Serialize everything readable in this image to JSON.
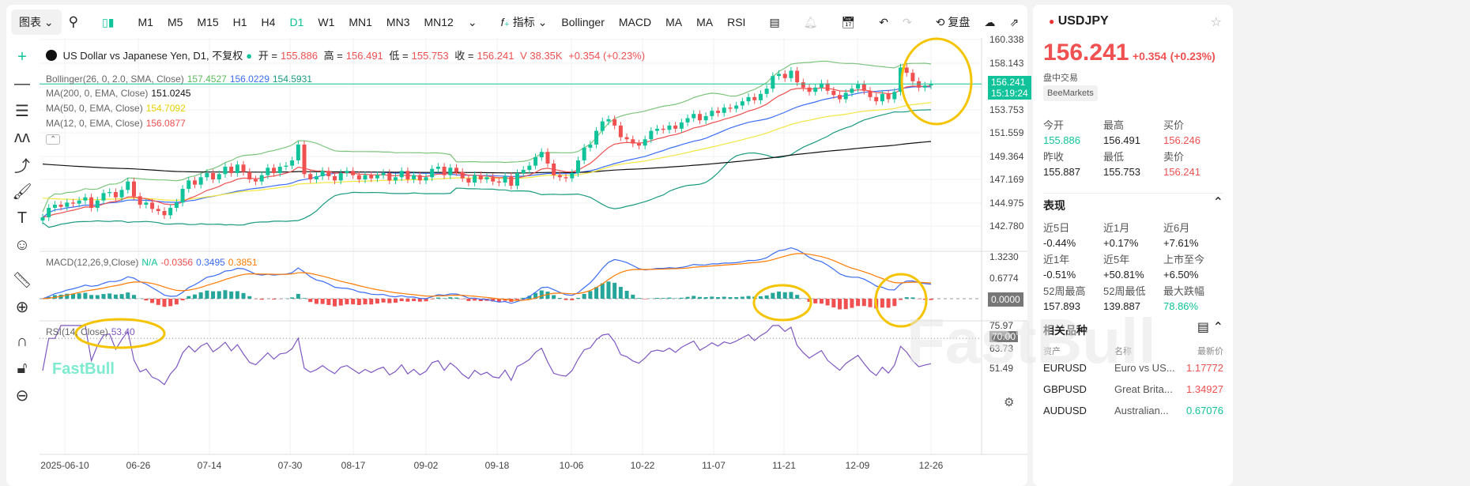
{
  "toolbar": {
    "chart_menu": "图表",
    "timeframes": [
      "M1",
      "M5",
      "M15",
      "H1",
      "H4",
      "D1",
      "W1",
      "MN1",
      "MN3",
      "MN12"
    ],
    "active_timeframe": "D1",
    "indicators_label": "指标",
    "indicator_shortcuts": [
      "Bollinger",
      "MACD",
      "MA",
      "MA",
      "RSI"
    ],
    "replay_label": "复盘"
  },
  "header": {
    "title": "US Dollar vs Japanese Yen, D1, 不复权",
    "open_label": "开 =",
    "open": "155.886",
    "high_label": "高 =",
    "high": "156.491",
    "low_label": "低 =",
    "low": "155.753",
    "close_label": "收 =",
    "close": "156.241",
    "volume": "V 38.35K",
    "change": "+0.354 (+0.23%)"
  },
  "indicators": {
    "bollinger": {
      "label": "Bollinger(26, 0, 2.0, SMA, Close)",
      "upper": "157.4527",
      "mid": "156.0229",
      "lower": "154.5931"
    },
    "ma200": {
      "label": "MA(200, 0, EMA, Close)",
      "value": "151.0245"
    },
    "ma50": {
      "label": "MA(50, 0, EMA, Close)",
      "value": "154.7092"
    },
    "ma12": {
      "label": "MA(12, 0, EMA, Close)",
      "value": "156.0877"
    },
    "macd": {
      "label": "MACD(12,26,9,Close)",
      "na": "N/A",
      "hist": "-0.0356",
      "macd": "0.3495",
      "signal": "0.3851"
    },
    "rsi": {
      "label": "RSI(14, Close)",
      "value": "53.40"
    }
  },
  "price_axis": [
    "160.338",
    "158.143",
    "156.241",
    "153.753",
    "151.559",
    "149.364",
    "147.169",
    "144.975",
    "142.780"
  ],
  "current_price_tag": {
    "price": "156.241",
    "countdown": "15:19:24"
  },
  "macd_axis": [
    "1.3230",
    "0.6774",
    "0.0000"
  ],
  "rsi_axis": [
    "75.97",
    "70.00",
    "63.73",
    "51.49"
  ],
  "dates": [
    "2025-06-10",
    "06-26",
    "07-14",
    "07-30",
    "08-17",
    "09-02",
    "09-18",
    "10-06",
    "10-22",
    "11-07",
    "11-21",
    "12-09",
    "12-26"
  ],
  "watermark": "FastBull",
  "colors": {
    "up": "#10c39a",
    "down": "#f05050",
    "accent": "#10c39a"
  },
  "chart_data": {
    "type": "candlestick",
    "symbol": "USDJPY",
    "timeframe": "D1",
    "ylim": [
      142.0,
      160.6
    ],
    "closes": [
      143.6,
      144.5,
      144.8,
      144.6,
      145.0,
      144.9,
      145.2,
      145.5,
      144.5,
      145.2,
      145.9,
      146.0,
      145.5,
      146.2,
      147.0,
      145.6,
      144.8,
      145.0,
      144.4,
      144.2,
      143.8,
      144.5,
      145.0,
      146.3,
      147.1,
      146.7,
      147.4,
      147.8,
      147.2,
      147.7,
      148.4,
      147.8,
      148.6,
      147.9,
      147.2,
      147.0,
      147.6,
      148.3,
      147.8,
      148.4,
      148.5,
      149.0,
      150.5,
      147.7,
      147.2,
      147.5,
      148.0,
      147.5,
      147.1,
      147.8,
      148.0,
      147.6,
      147.2,
      147.6,
      147.3,
      147.6,
      147.8,
      147.1,
      147.4,
      148.0,
      147.2,
      147.6,
      147.1,
      147.4,
      148.2,
      148.4,
      147.6,
      148.3,
      147.9,
      147.3,
      146.9,
      147.6,
      147.2,
      147.4,
      147.0,
      146.9,
      147.5,
      146.6,
      147.8,
      148.1,
      148.5,
      149.3,
      149.8,
      148.7,
      147.6,
      147.4,
      147.3,
      147.8,
      149.0,
      150.2,
      150.5,
      151.8,
      152.7,
      152.9,
      152.3,
      151.2,
      151.0,
      150.6,
      150.4,
      151.0,
      151.8,
      152.0,
      151.9,
      152.3,
      152.0,
      152.6,
      153.0,
      153.4,
      152.8,
      153.2,
      153.7,
      153.5,
      154.0,
      153.9,
      154.2,
      154.6,
      155.0,
      154.7,
      155.3,
      155.8,
      157.0,
      157.2,
      156.8,
      157.5,
      156.4,
      155.9,
      155.5,
      155.9,
      156.3,
      155.6,
      155.2,
      154.8,
      155.4,
      155.8,
      156.2,
      155.6,
      155.0,
      154.6,
      155.3,
      154.8,
      155.5,
      157.8,
      157.3,
      156.5,
      155.9,
      156.1,
      156.241
    ]
  },
  "side": {
    "symbol": "USDJPY",
    "price": "156.241",
    "change": "+0.354",
    "change_pct": "(+0.23%)",
    "session": "盘中交易",
    "broker": "BeeMarkets",
    "quote": [
      {
        "k": "今开",
        "v": "155.886",
        "c": "green"
      },
      {
        "k": "最高",
        "v": "156.491",
        "c": ""
      },
      {
        "k": "买价",
        "v": "156.246",
        "c": "red"
      },
      {
        "k": "昨收",
        "v": "155.887",
        "c": ""
      },
      {
        "k": "最低",
        "v": "155.753",
        "c": ""
      },
      {
        "k": "卖价",
        "v": "156.241",
        "c": "red"
      }
    ],
    "performance_title": "表现",
    "performance": [
      {
        "k": "近5日",
        "v": "-0.44%"
      },
      {
        "k": "近1月",
        "v": "+0.17%"
      },
      {
        "k": "近6月",
        "v": "+7.61%"
      },
      {
        "k": "近1年",
        "v": "-0.51%"
      },
      {
        "k": "近5年",
        "v": "+50.81%"
      },
      {
        "k": "上市至今",
        "v": "+6.50%"
      },
      {
        "k": "52周最高",
        "v": "157.893"
      },
      {
        "k": "52周最低",
        "v": "139.887"
      },
      {
        "k": "最大跌幅",
        "v": "78.86%"
      }
    ],
    "related_title": "相关品种",
    "related_headers": [
      "资产",
      "名称",
      "最新价"
    ],
    "related": [
      {
        "asset": "EURUSD",
        "name": "Euro vs US...",
        "price": "1.17772",
        "c": "red"
      },
      {
        "asset": "GBPUSD",
        "name": "Great Brita...",
        "price": "1.34927",
        "c": "red"
      },
      {
        "asset": "AUDUSD",
        "name": "Australian...",
        "price": "0.67076",
        "c": "green"
      }
    ]
  }
}
